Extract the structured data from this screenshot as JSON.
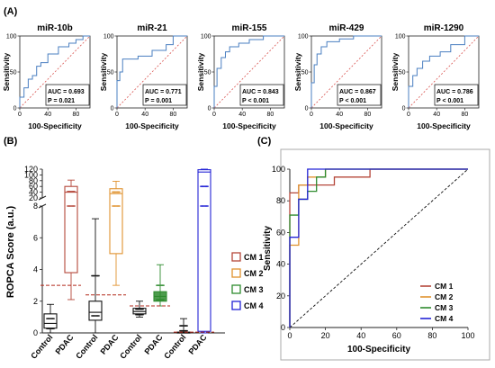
{
  "panel_labels": {
    "a": "(A)",
    "b": "(B)",
    "c": "(C)"
  },
  "colors": {
    "roc_line": "#4a7fc1",
    "diagonal": "#d9534f",
    "cutoff": "#b22a1c",
    "cm1": "#b5473a",
    "cm2": "#e0922e",
    "cm3": "#2e8b2e",
    "cm4": "#2323d6",
    "black": "#111111"
  },
  "chart_data": [
    {
      "type": "line",
      "title": "miR-10b",
      "xlabel": "100-Specificity",
      "ylabel": "Sensitivity",
      "xlim": [
        0,
        100
      ],
      "ylim": [
        0,
        100
      ],
      "x_ticks": [
        "0",
        "40",
        "80"
      ],
      "y_ticks": [
        "0",
        "50",
        "100"
      ],
      "annotation": [
        "AUC = 0.693",
        "P = 0.021"
      ],
      "series": [
        {
          "x": [
            0,
            0,
            6,
            6,
            12,
            12,
            18,
            18,
            24,
            24,
            30,
            30,
            40,
            40,
            55,
            55,
            70,
            70,
            80,
            80,
            90,
            90,
            100
          ],
          "y": [
            0,
            15,
            15,
            28,
            28,
            40,
            40,
            45,
            45,
            58,
            58,
            63,
            63,
            75,
            75,
            85,
            85,
            90,
            90,
            95,
            95,
            100,
            100
          ]
        }
      ]
    },
    {
      "type": "line",
      "title": "miR-21",
      "xlabel": "",
      "ylabel": "",
      "xlim": [
        0,
        100
      ],
      "ylim": [
        0,
        100
      ],
      "x_ticks": [
        "0",
        "40",
        "80"
      ],
      "y_ticks": [
        "0",
        "50",
        "100"
      ],
      "annotation": [
        "AUC = 0.771",
        "P = 0.001"
      ],
      "series": [
        {
          "x": [
            0,
            0,
            4,
            4,
            8,
            8,
            30,
            30,
            50,
            50,
            70,
            70,
            80,
            80,
            100
          ],
          "y": [
            0,
            38,
            38,
            50,
            50,
            68,
            68,
            72,
            72,
            80,
            80,
            88,
            88,
            100,
            100
          ]
        }
      ]
    },
    {
      "type": "line",
      "title": "miR-155",
      "xlabel": "",
      "ylabel": "",
      "xlim": [
        0,
        100
      ],
      "ylim": [
        0,
        100
      ],
      "x_ticks": [
        "0",
        "40",
        "80"
      ],
      "y_ticks": [
        "0",
        "50",
        "100"
      ],
      "annotation": [
        "AUC = 0.843",
        "P < 0.001"
      ],
      "series": [
        {
          "x": [
            0,
            0,
            4,
            4,
            10,
            10,
            16,
            16,
            22,
            22,
            35,
            35,
            50,
            50,
            70,
            70,
            100
          ],
          "y": [
            0,
            30,
            30,
            55,
            55,
            70,
            70,
            78,
            78,
            85,
            85,
            90,
            90,
            95,
            95,
            100,
            100
          ]
        }
      ]
    },
    {
      "type": "line",
      "title": "miR-429",
      "xlabel": "",
      "ylabel": "",
      "xlim": [
        0,
        100
      ],
      "ylim": [
        0,
        100
      ],
      "x_ticks": [
        "0",
        "40",
        "80"
      ],
      "y_ticks": [
        "0",
        "50",
        "100"
      ],
      "annotation": [
        "AUC = 0.867",
        "P < 0.001"
      ],
      "series": [
        {
          "x": [
            0,
            0,
            4,
            4,
            8,
            8,
            14,
            14,
            22,
            22,
            40,
            40,
            60,
            60,
            100
          ],
          "y": [
            0,
            35,
            35,
            60,
            60,
            75,
            75,
            85,
            85,
            92,
            92,
            96,
            96,
            100,
            100
          ]
        }
      ]
    },
    {
      "type": "line",
      "title": "miR-1290",
      "xlabel": "",
      "ylabel": "",
      "xlim": [
        0,
        100
      ],
      "ylim": [
        0,
        100
      ],
      "x_ticks": [
        "0",
        "40",
        "80"
      ],
      "y_ticks": [
        "0",
        "50",
        "100"
      ],
      "annotation": [
        "AUC = 0.786",
        "P < 0.001"
      ],
      "series": [
        {
          "x": [
            0,
            0,
            6,
            6,
            12,
            12,
            20,
            20,
            30,
            30,
            45,
            45,
            60,
            60,
            80,
            80,
            100
          ],
          "y": [
            0,
            30,
            30,
            45,
            45,
            55,
            55,
            65,
            65,
            72,
            72,
            78,
            78,
            88,
            88,
            100,
            100
          ]
        }
      ]
    },
    {
      "type": "box",
      "ylabel": "ROPCA Score (a.u.)",
      "categories": [
        "Control",
        "PDAC",
        "Control",
        "PDAC",
        "Control",
        "PDAC",
        "Control",
        "PDAC"
      ],
      "group_of_box": [
        "CM 1",
        "CM 1",
        "CM 2",
        "CM 2",
        "CM 3",
        "CM 3",
        "CM 4",
        "CM 4"
      ],
      "y_ticks_lower": [
        "0",
        "2",
        "4",
        "6",
        "8"
      ],
      "y_ticks_upper": [
        "20",
        "40",
        "60",
        "80",
        "100",
        "120"
      ],
      "axis_break": [
        8,
        20
      ],
      "boxes": [
        {
          "q1": 0.3,
          "median": 0.6,
          "q3": 1.2,
          "min": 0.0,
          "max": 1.8
        },
        {
          "q1": 3.8,
          "median": 40,
          "q3": 60,
          "min": 2.1,
          "max": 82
        },
        {
          "q1": 0.8,
          "median": 1.3,
          "q3": 2.0,
          "min": 0.0,
          "max": 7.2
        },
        {
          "q1": 5.0,
          "median": 35,
          "q3": 52,
          "min": 3.0,
          "max": 78
        },
        {
          "q1": 1.2,
          "median": 1.35,
          "q3": 1.55,
          "min": 1.0,
          "max": 2.0
        },
        {
          "q1": 2.0,
          "median": 2.3,
          "q3": 2.6,
          "min": 1.7,
          "max": 4.3
        },
        {
          "q1": 0.0,
          "median": 0.02,
          "q3": 0.05,
          "min": 0.0,
          "max": 0.9
        },
        {
          "q1": 0.1,
          "median": 110,
          "q3": 118,
          "min": 0.0,
          "max": 120
        }
      ],
      "cutoffs": [
        {
          "group": "CM 1",
          "value": 3.0
        },
        {
          "group": "CM 2",
          "value": 2.4
        },
        {
          "group": "CM 3",
          "value": 1.7
        },
        {
          "group": "CM 4",
          "value": 0.05
        }
      ],
      "legend": [
        "CM 1",
        "CM 2",
        "CM 3",
        "CM 4"
      ],
      "legend_position": "right"
    },
    {
      "type": "line",
      "xlabel": "100-Specificity",
      "ylabel": "Sensitivity",
      "xlim": [
        0,
        100
      ],
      "ylim": [
        0,
        100
      ],
      "x_ticks": [
        "0",
        "20",
        "40",
        "60",
        "80",
        "100"
      ],
      "y_ticks": [
        "0",
        "20",
        "40",
        "60",
        "80",
        "100"
      ],
      "legend_position": "bottom-right",
      "series": [
        {
          "name": "CM 1",
          "x": [
            0,
            0,
            5,
            5,
            25,
            25,
            45,
            45,
            100
          ],
          "y": [
            0,
            85,
            85,
            90,
            90,
            95,
            95,
            100,
            100
          ]
        },
        {
          "name": "CM 2",
          "x": [
            0,
            0,
            5,
            5,
            10,
            10,
            20,
            20,
            100
          ],
          "y": [
            0,
            52,
            52,
            90,
            90,
            95,
            95,
            100,
            100
          ]
        },
        {
          "name": "CM 3",
          "x": [
            0,
            0,
            5,
            5,
            10,
            10,
            15,
            15,
            20,
            20,
            100
          ],
          "y": [
            0,
            71,
            71,
            81,
            81,
            86,
            86,
            95,
            95,
            100,
            100
          ]
        },
        {
          "name": "CM 4",
          "x": [
            0,
            0,
            5,
            5,
            10,
            10,
            100
          ],
          "y": [
            0,
            57,
            57,
            81,
            81,
            100,
            100
          ]
        }
      ]
    }
  ]
}
